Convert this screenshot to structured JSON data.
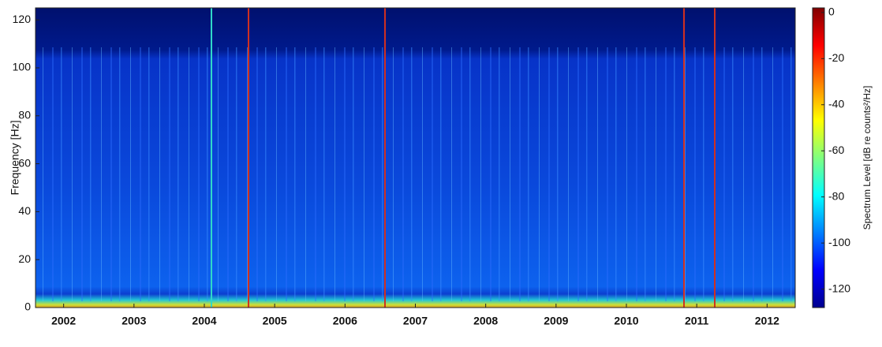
{
  "chart_data": {
    "type": "spectrogram",
    "y_label": "Frequency [Hz]",
    "xlim": [
      2001.6,
      2012.4
    ],
    "xticks": [
      2002,
      2003,
      2004,
      2005,
      2006,
      2007,
      2008,
      2009,
      2010,
      2011,
      2012
    ],
    "ylim": [
      0,
      125
    ],
    "yticks": [
      0,
      20,
      40,
      60,
      80,
      100,
      120
    ],
    "colorbar": {
      "label": "Spectrum Level [dB re counts²/Hz]",
      "clim": [
        -128,
        2
      ],
      "ticks": [
        0,
        -20,
        -40,
        -60,
        -80,
        -100,
        -120
      ],
      "colormap": "jet"
    }
  }
}
